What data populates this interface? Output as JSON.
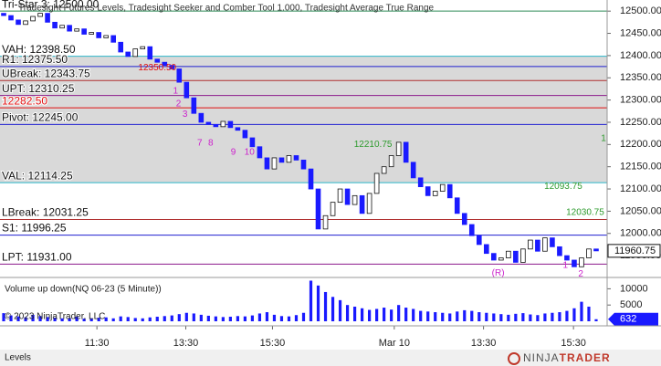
{
  "header": "Tradesight Futures Levels, Tradesight Seeker and Comber Tool 1.000, Tradesight Average True Range",
  "copyright": "© 2023 NinjaTrader, LLC",
  "tab": "Levels",
  "logo": [
    "NINJA",
    "TRADER"
  ],
  "chart_data": [
    {
      "type": "candlestick",
      "xlim": [
        -0.5,
        82.5
      ],
      "xticks": [
        {
          "value": 12.75,
          "label": "11:30"
        },
        {
          "value": 24.9,
          "label": "13:30"
        },
        {
          "value": 36.75,
          "label": "15:30"
        },
        {
          "value": 53.4,
          "label": "Mar 10"
        },
        {
          "value": 65.6,
          "label": "13:30"
        },
        {
          "value": 77.9,
          "label": "15:30"
        }
      ],
      "ylim": [
        11903,
        12525
      ],
      "yticks": [
        {
          "value": 12500,
          "label": "12500.00"
        },
        {
          "value": 12450,
          "label": "12450.00"
        },
        {
          "value": 12400,
          "label": "12400.00"
        },
        {
          "value": 12350,
          "label": "12350.00"
        },
        {
          "value": 12300,
          "label": "12300.00"
        },
        {
          "value": 12250,
          "label": "12250.00"
        },
        {
          "value": 12200,
          "label": "12200.00"
        },
        {
          "value": 12150,
          "label": "12150.00"
        },
        {
          "value": 12100,
          "label": "12100.00"
        },
        {
          "value": 12050,
          "label": "12050.00"
        },
        {
          "value": 12000,
          "label": "12000.00"
        },
        {
          "value": 11950,
          "label": "11950.00"
        }
      ],
      "up_color": "#ffffff",
      "down_color": "#1a1aff",
      "open": [
        12495,
        12490,
        12480,
        12470,
        12478,
        12488,
        12495,
        12475,
        12462,
        12468,
        12455,
        12460,
        12448,
        12452,
        12440,
        12445,
        12430,
        12408,
        12398,
        12415,
        12420,
        12392,
        12385,
        12378,
        12370,
        12340,
        12305,
        12270,
        12250,
        12245,
        12240,
        12252,
        12238,
        12232,
        12215,
        12195,
        12170,
        12145,
        12170,
        12160,
        12175,
        12165,
        12145,
        12100,
        12010,
        12040,
        12070,
        12100,
        12065,
        12085,
        12045,
        12090,
        12135,
        12150,
        12175,
        12205,
        12160,
        12125,
        12105,
        12085,
        12095,
        12110,
        12080,
        12045,
        12020,
        11995,
        11975,
        11955,
        11940,
        11945,
        11960,
        11935,
        11965,
        11985,
        11960,
        11990,
        11970,
        11950,
        11940,
        11925,
        11945,
        11965
      ],
      "close": [
        12490,
        12480,
        12470,
        12478,
        12488,
        12495,
        12475,
        12462,
        12468,
        12455,
        12460,
        12448,
        12452,
        12440,
        12445,
        12430,
        12408,
        12398,
        12415,
        12420,
        12392,
        12385,
        12378,
        12370,
        12340,
        12305,
        12270,
        12250,
        12245,
        12240,
        12252,
        12238,
        12232,
        12215,
        12195,
        12170,
        12145,
        12170,
        12160,
        12175,
        12165,
        12145,
        12100,
        12010,
        12040,
        12070,
        12100,
        12065,
        12085,
        12045,
        12090,
        12135,
        12150,
        12175,
        12205,
        12160,
        12125,
        12105,
        12085,
        12095,
        12110,
        12080,
        12045,
        12020,
        11995,
        11975,
        11955,
        11940,
        11945,
        11960,
        11935,
        11965,
        11985,
        11960,
        11990,
        11970,
        11950,
        11940,
        11925,
        11945,
        11965,
        11960.75
      ],
      "value_area_color": "#d9d9d9",
      "levels": [
        {
          "label": "Tri-Star 3: 12500.00",
          "value": 12500,
          "color": "#2e8b57"
        },
        {
          "label": "VAH: 12398.50",
          "value": 12398.5,
          "color": "#2bb5c8",
          "value_area_edge": true
        },
        {
          "label": "R1: 12375.50",
          "value": 12375.5,
          "color": "#1f1fd0"
        },
        {
          "label": "UBreak: 12343.75",
          "value": 12343.75,
          "color": "#b03030"
        },
        {
          "label": "UPT: 12310.25",
          "value": 12310.25,
          "color": "#8b1a8b"
        },
        {
          "label": "12282.50",
          "value": 12282.5,
          "color": "#e01010"
        },
        {
          "label": "Pivot: 12245.00",
          "value": 12245,
          "color": "#1f1fd0"
        },
        {
          "label": "VAL: 12114.25",
          "value": 12114.25,
          "color": "#2bb5c8",
          "value_area_edge": true
        },
        {
          "label": "LBreak: 12031.25",
          "value": 12031.25,
          "color": "#b03030"
        },
        {
          "label": "S1: 11996.25",
          "value": 11996.25,
          "color": "#1f1fd0"
        },
        {
          "label": "LPT: 11931.00",
          "value": 11931,
          "color": "#8b1a8b"
        }
      ],
      "annotations": [
        {
          "text": "12350.50",
          "color": "#e01010",
          "x": 21,
          "y": 12372
        },
        {
          "text": "12210.75",
          "color": "#2e9b2e",
          "x": 50.5,
          "y": 12200
        },
        {
          "text": "12093.75",
          "color": "#2e9b2e",
          "x": 76.5,
          "y": 12106
        },
        {
          "text": "12030.75",
          "color": "#2e9b2e",
          "x": 79.5,
          "y": 12047
        },
        {
          "text": "1",
          "color": "#2e9b2e",
          "x": 82,
          "y": 12213
        },
        {
          "text": "1",
          "color": "#cc22cc",
          "x": 23.5,
          "y": 12320
        },
        {
          "text": "2",
          "color": "#cc22cc",
          "x": 23.9,
          "y": 12291
        },
        {
          "text": "3",
          "color": "#cc22cc",
          "x": 24.8,
          "y": 12268
        },
        {
          "text": "7",
          "color": "#cc22cc",
          "x": 26.8,
          "y": 12203
        },
        {
          "text": "8",
          "color": "#cc22cc",
          "x": 28.3,
          "y": 12203
        },
        {
          "text": "9",
          "color": "#cc22cc",
          "x": 31.4,
          "y": 12182
        },
        {
          "text": "10",
          "color": "#cc22cc",
          "x": 33.6,
          "y": 12182
        },
        {
          "text": "(R)",
          "color": "#cc22cc",
          "x": 67.6,
          "y": 11910
        },
        {
          "text": "1",
          "color": "#cc22cc",
          "x": 76.8,
          "y": 11928
        },
        {
          "text": "2",
          "color": "#cc22cc",
          "x": 78.9,
          "y": 11908
        }
      ]
    },
    {
      "type": "bar",
      "title": "Volume up down(NQ 06-23 (5 Minute))",
      "color": "#1a1aff",
      "ylim": [
        0,
        13200
      ],
      "yticks": [
        5000,
        10000
      ],
      "values": [
        2500,
        1800,
        1500,
        1200,
        2000,
        1600,
        1300,
        1100,
        900,
        1000,
        1400,
        800,
        900,
        1100,
        1200,
        900,
        1500,
        1300,
        1000,
        900,
        1200,
        1400,
        1600,
        1800,
        2200,
        2600,
        2400,
        2000,
        1700,
        1500,
        1300,
        1400,
        1600,
        1500,
        1800,
        2400,
        2800,
        2000,
        1600,
        1500,
        1900,
        2600,
        12500,
        11000,
        9000,
        7500,
        6500,
        5000,
        4500,
        4000,
        3500,
        3800,
        4200,
        3600,
        5000,
        4200,
        3800,
        3200,
        3000,
        2800,
        2600,
        2400,
        3000,
        3400,
        3200,
        2800,
        2600,
        2400,
        2200,
        2000,
        2300,
        2500,
        2100,
        1900,
        2400,
        2600,
        2800,
        3200,
        4000,
        6000,
        4500,
        632
      ]
    }
  ]
}
